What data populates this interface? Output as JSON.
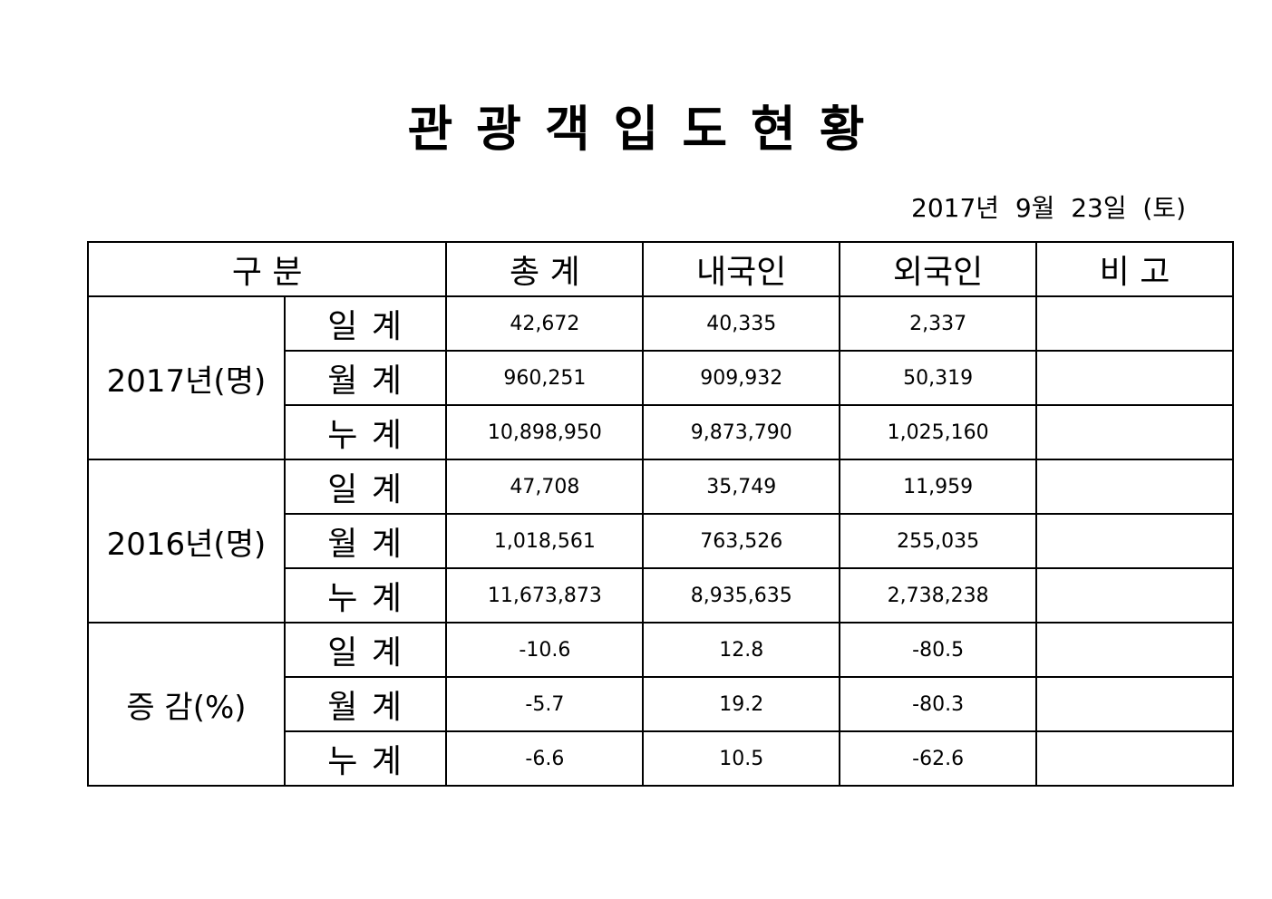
{
  "document": {
    "title": "관광객입도현황",
    "date": "2017년  9월  23일  (토)"
  },
  "table": {
    "headers": {
      "category": "구   분",
      "total": "총   계",
      "domestic": "내국인",
      "foreign": "외국인",
      "note": "비   고"
    },
    "groups": [
      {
        "label": "2017년(명)",
        "rows": [
          {
            "sub": "일  계",
            "total": "42,672",
            "domestic": "40,335",
            "foreign": "2,337",
            "note": ""
          },
          {
            "sub": "월  계",
            "total": "960,251",
            "domestic": "909,932",
            "foreign": "50,319",
            "note": ""
          },
          {
            "sub": "누  계",
            "total": "10,898,950",
            "domestic": "9,873,790",
            "foreign": "1,025,160",
            "note": ""
          }
        ]
      },
      {
        "label": "2016년(명)",
        "rows": [
          {
            "sub": "일  계",
            "total": "47,708",
            "domestic": "35,749",
            "foreign": "11,959",
            "note": ""
          },
          {
            "sub": "월  계",
            "total": "1,018,561",
            "domestic": "763,526",
            "foreign": "255,035",
            "note": ""
          },
          {
            "sub": "누  계",
            "total": "11,673,873",
            "domestic": "8,935,635",
            "foreign": "2,738,238",
            "note": ""
          }
        ]
      },
      {
        "label": "증  감(%)",
        "rows": [
          {
            "sub": "일  계",
            "total": "-10.6",
            "domestic": "12.8",
            "foreign": "-80.5",
            "note": ""
          },
          {
            "sub": "월  계",
            "total": "-5.7",
            "domestic": "19.2",
            "foreign": "-80.3",
            "note": ""
          },
          {
            "sub": "누  계",
            "total": "-6.6",
            "domestic": "10.5",
            "foreign": "-62.6",
            "note": ""
          }
        ]
      }
    ]
  }
}
